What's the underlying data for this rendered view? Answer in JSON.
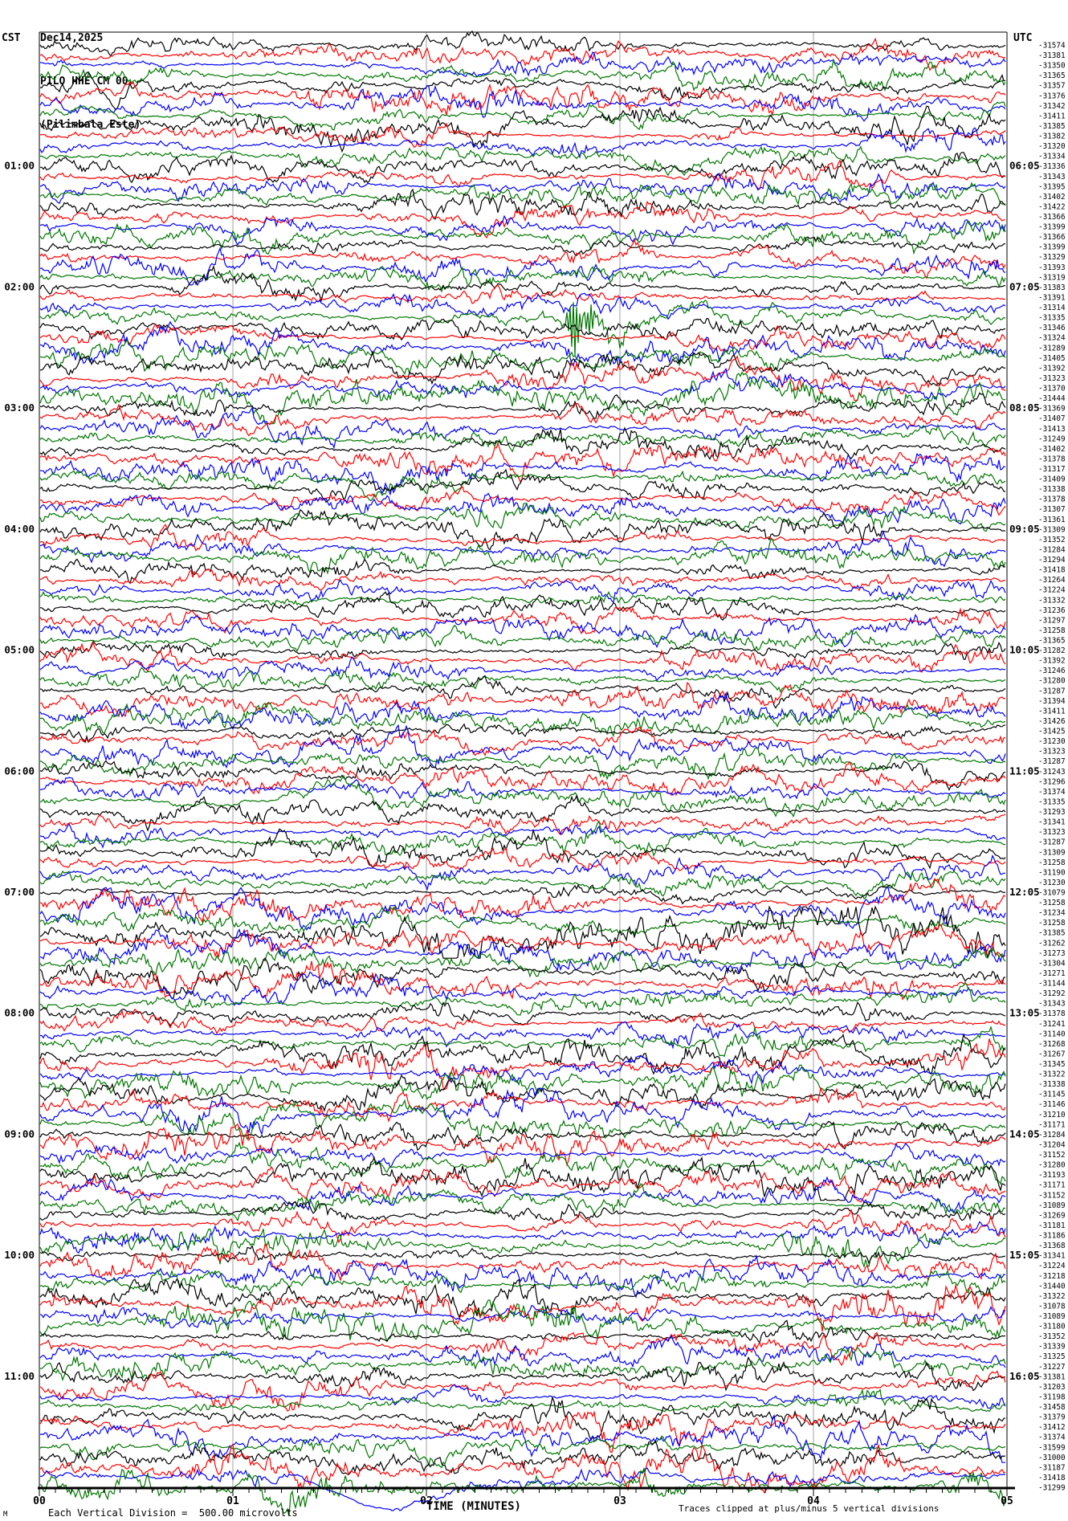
{
  "header": {
    "date": "Dec14,2025",
    "station": "PILO HHE CM 00",
    "location": "(Pilimbala Este)",
    "left_tz": "CST",
    "right_tz": "UTC"
  },
  "footer": {
    "scale_note": "Each Vertical Division =  500.00 microvolts",
    "clip_note": "Traces clipped at plus/minus 5 vertical divisions",
    "corner_glyph": "M"
  },
  "chart_data": {
    "type": "line",
    "subtype": "helicorder-seismogram",
    "title": "PILO HHE CM 00 (Pilimbala Este) Dec14,2025",
    "xlabel": "TIME (MINUTES)",
    "x_range_minutes": [
      0,
      5
    ],
    "x_ticks": [
      "00",
      "01",
      "02",
      "03",
      "04",
      "05"
    ],
    "rows": 144,
    "row_duration_minutes": 5,
    "rows_per_hour": 12,
    "first_row_start_left_tz": "00:00",
    "left_hour_labels": [
      "01:00",
      "02:00",
      "03:00",
      "04:00",
      "05:00",
      "06:00",
      "07:00",
      "08:00",
      "09:00",
      "10:00",
      "11:00"
    ],
    "right_hour_labels": [
      "06:05",
      "07:05",
      "08:05",
      "09:05",
      "10:05",
      "11:05",
      "12:05",
      "13:05",
      "14:05",
      "15:05",
      "16:05"
    ],
    "trace_color_cycle": [
      "#000000",
      "#ff0000",
      "#0000ff",
      "#007700"
    ],
    "grid_color": "#a0a0a0",
    "scale_microvolts_per_division": 500.0,
    "clip_divisions": 5,
    "row_mean_counts": [
      -31574,
      -31381,
      -31350,
      -31365,
      -31357,
      -31376,
      -31342,
      -31411,
      -31385,
      -31382,
      -31320,
      -31334,
      -31336,
      -31343,
      -31395,
      -31402,
      -31422,
      -31366,
      -31399,
      -31366,
      -31399,
      -31329,
      -31393,
      -31319,
      -31383,
      -31391,
      -31314,
      -31335,
      -31346,
      -31324,
      -31289,
      -31405,
      -31392,
      -31323,
      -31370,
      -31444,
      -31369,
      -31407,
      -31413,
      -31249,
      -31402,
      -31378,
      -31317,
      -31409,
      -31338,
      -31378,
      -31307,
      -31361,
      -31309,
      -31352,
      -31284,
      -31294,
      -31418,
      -31264,
      -31224,
      -31332,
      -31236,
      -31297,
      -31258,
      -31365,
      -31282,
      -31392,
      -31246,
      -31280,
      -31287,
      -31394,
      -31411,
      -31426,
      -31425,
      -31230,
      -31323,
      -31287,
      -31243,
      -31296,
      -31374,
      -31335,
      -31293,
      -31341,
      -31323,
      -31287,
      -31309,
      -31258,
      -31190,
      -31230,
      -31079,
      -31258,
      -31234,
      -31258,
      -31385,
      -31262,
      -31273,
      -31304,
      -31271,
      -31144,
      -31292,
      -31343,
      -31378,
      -31241,
      -31140,
      -31268,
      -31267,
      -31345,
      -31322,
      -31338,
      -31145,
      -31146,
      -31210,
      -31171,
      -31284,
      -31204,
      -31152,
      -31280,
      -31193,
      -31171,
      -31152,
      -31089,
      -31269,
      -31181,
      -31186,
      -31368,
      -31341,
      -31224,
      -31218,
      -31440,
      -31322,
      -31078,
      -31089,
      -31180,
      -31352,
      -31339,
      -31325,
      -31227,
      -31381,
      -31203,
      -31198,
      -31458,
      -31379,
      -31412,
      -31374,
      -31599,
      -31000,
      -31187,
      -31418,
      -31299
    ],
    "events": [
      {
        "row": 27,
        "start_minute": 2.7,
        "end_minute": 3.05,
        "type": "hf-burst"
      },
      {
        "row": 142,
        "start_minute": 1.3,
        "end_minute": 2.8,
        "type": "deep-swing"
      },
      {
        "row": 143,
        "start_minute": 0.9,
        "end_minute": 3.1,
        "type": "high-amplitude"
      }
    ]
  }
}
